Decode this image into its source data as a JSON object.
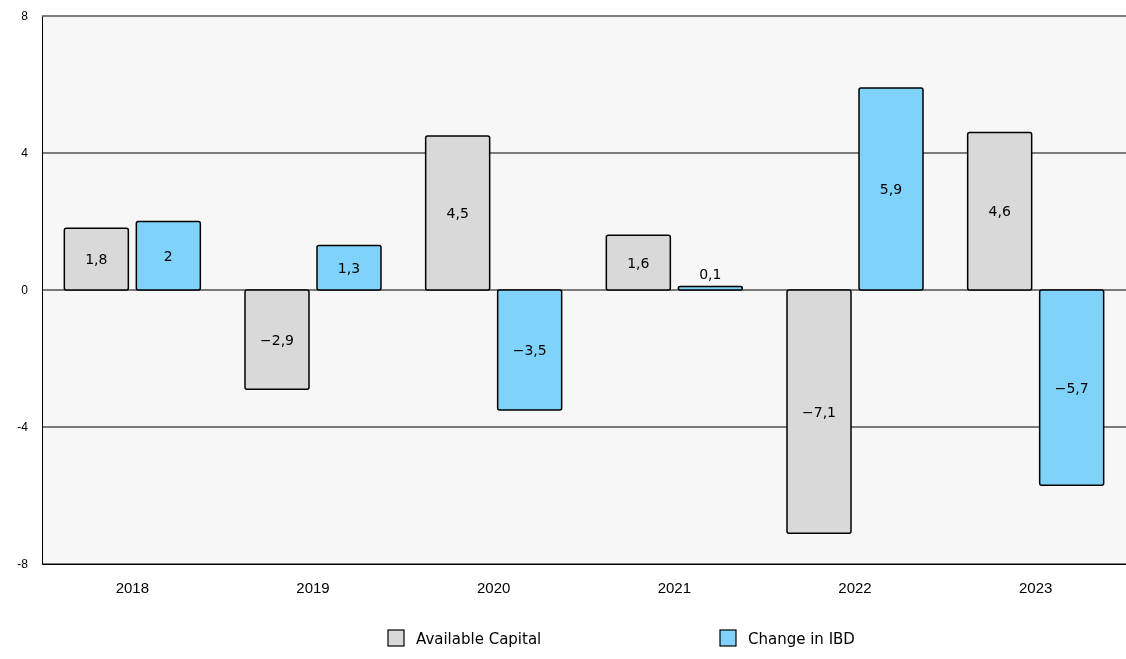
{
  "chart_data": {
    "type": "bar",
    "categories": [
      "2018",
      "2019",
      "2020",
      "2021",
      "2022",
      "2023"
    ],
    "series": [
      {
        "name": "Available Capital",
        "color": "#d9d9d9",
        "values": [
          1.8,
          -2.9,
          4.5,
          1.6,
          -7.1,
          4.6
        ],
        "value_labels": [
          "1,8",
          "−2,9",
          "4,5",
          "1,6",
          "−7,1",
          "4,6"
        ]
      },
      {
        "name": "Change in IBD",
        "color": "#7fd3fb",
        "values": [
          2,
          1.3,
          -3.5,
          0.1,
          5.9,
          -5.7
        ],
        "value_labels": [
          "2",
          "1,3",
          "−3,5",
          "0,1",
          "5,9",
          "−5,7"
        ]
      }
    ],
    "ylim": [
      -8,
      8
    ],
    "yticks": [
      -8,
      -4,
      0,
      4,
      8
    ],
    "grid": "y",
    "legend": "bottom"
  }
}
